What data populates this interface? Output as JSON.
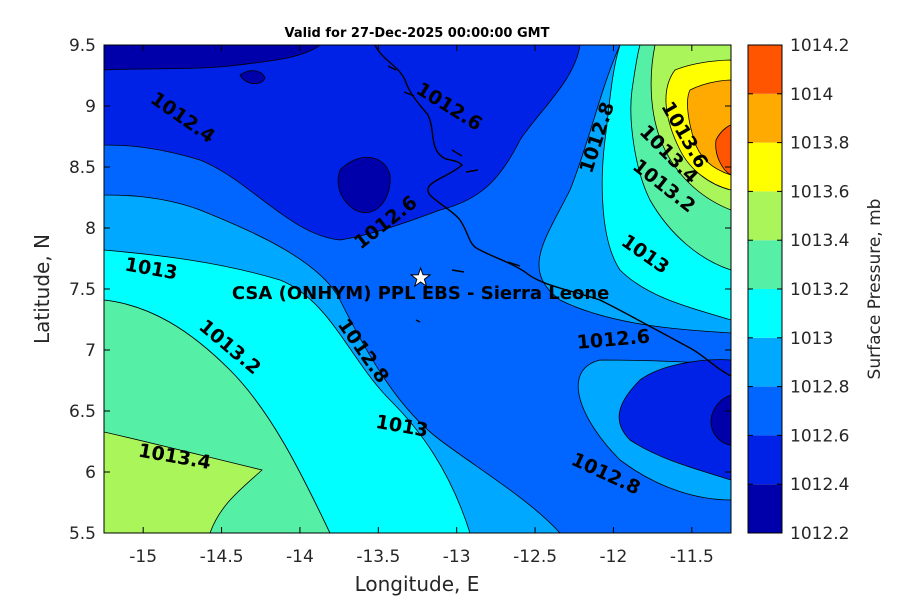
{
  "chart_data": {
    "type": "contour",
    "title": "Valid for 27-Dec-2025 00:00:00 GMT",
    "xlabel": "Longitude, E",
    "ylabel": "Latitude, N",
    "colorbar_label": "Surface Pressure, mb",
    "xlim": [
      -15.25,
      -11.25
    ],
    "ylim": [
      5.5,
      9.5
    ],
    "x_ticks": [
      -15,
      -14.5,
      -14,
      -13.5,
      -13,
      -12.5,
      -12,
      -11.5
    ],
    "x_tick_labels": [
      "-15",
      "-14.5",
      "-14",
      "-13.5",
      "-13",
      "-12.5",
      "-12",
      "-11.5"
    ],
    "y_ticks": [
      5.5,
      6,
      6.5,
      7,
      7.5,
      8,
      8.5,
      9,
      9.5
    ],
    "y_tick_labels": [
      "5.5",
      "6",
      "6.5",
      "7",
      "7.5",
      "8",
      "8.5",
      "9",
      "9.5"
    ],
    "colorbar_levels": [
      1012.2,
      1012.4,
      1012.6,
      1012.8,
      1013,
      1013.2,
      1013.4,
      1013.6,
      1013.8,
      1014,
      1014.2
    ],
    "colorbar_tick_labels": [
      "1012.2",
      "1012.4",
      "1012.6",
      "1012.8",
      "1013",
      "1013.2",
      "1013.4",
      "1013.6",
      "1013.8",
      "1014",
      "1014.2"
    ],
    "colorbar_colors": [
      "#0000aa",
      "#0022e6",
      "#0066ff",
      "#00a8ff",
      "#00ffff",
      "#55f0a6",
      "#aaf55a",
      "#ffff00",
      "#ffaa00",
      "#ff5500",
      "#ff0000"
    ],
    "contour_labels": [
      {
        "text": "1012.4",
        "lon": -14.75,
        "lat": 8.9,
        "rot": 35
      },
      {
        "text": "1012.6",
        "lon": -13.05,
        "lat": 8.99,
        "rot": 32
      },
      {
        "text": "1012.8",
        "lon": -12.1,
        "lat": 8.74,
        "rot": -72
      },
      {
        "text": "1012.6",
        "lon": -13.45,
        "lat": 8.04,
        "rot": -38
      },
      {
        "text": "1013",
        "lon": -14.95,
        "lat": 7.66,
        "rot": 10
      },
      {
        "text": "1012.8",
        "lon": -13.6,
        "lat": 6.99,
        "rot": 55
      },
      {
        "text": "1013.2",
        "lon": -14.45,
        "lat": 7.02,
        "rot": 40
      },
      {
        "text": "1013",
        "lon": -13.35,
        "lat": 6.37,
        "rot": 10
      },
      {
        "text": "1013.4",
        "lon": -14.8,
        "lat": 6.12,
        "rot": 10
      },
      {
        "text": "1012.6",
        "lon": -12.0,
        "lat": 7.08,
        "rot": -5
      },
      {
        "text": "1012.8",
        "lon": -12.05,
        "lat": 5.98,
        "rot": 25
      },
      {
        "text": "1013",
        "lon": -11.8,
        "lat": 7.78,
        "rot": 35
      },
      {
        "text": "1013.6",
        "lon": -11.55,
        "lat": 8.76,
        "rot": 60
      },
      {
        "text": "1013.4",
        "lon": -11.65,
        "lat": 8.6,
        "rot": 45
      },
      {
        "text": "1013.2",
        "lon": -11.68,
        "lat": 8.34,
        "rot": 38
      }
    ],
    "station": {
      "name": "CSA (ONHYM) PPL EBS  - Sierra Leone",
      "lon": -13.23,
      "lat": 7.59
    }
  }
}
